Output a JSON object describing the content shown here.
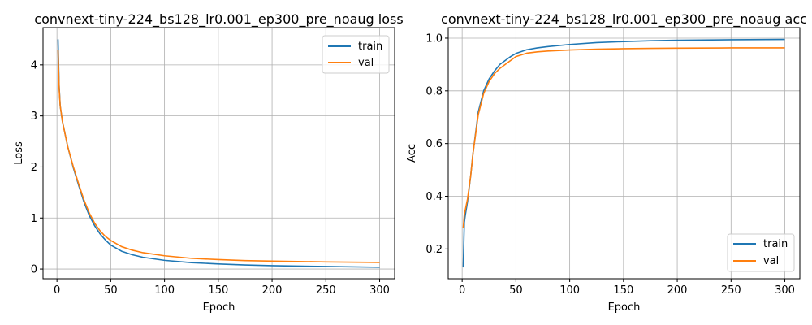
{
  "colors": {
    "train": "#1f77b4",
    "val": "#ff7f0e",
    "grid": "#b0b0b0"
  },
  "chart_data": [
    {
      "type": "line",
      "title": "convnext-tiny-224_bs128_lr0.001_ep300_pre_noaug loss",
      "xlabel": "Epoch",
      "ylabel": "Loss",
      "xlim": [
        -12.95,
        313.95
      ],
      "ylim": [
        -0.19,
        4.73
      ],
      "xticks": [
        0,
        50,
        100,
        150,
        200,
        250,
        300
      ],
      "yticks": [
        0,
        1,
        2,
        3,
        4
      ],
      "grid": true,
      "legend_position": "top-right",
      "series": [
        {
          "name": "train",
          "x": [
            1,
            2,
            3,
            5,
            8,
            10,
            15,
            20,
            25,
            30,
            35,
            40,
            45,
            50,
            60,
            70,
            80,
            100,
            125,
            150,
            175,
            200,
            250,
            300
          ],
          "y": [
            4.5,
            3.6,
            3.2,
            2.9,
            2.6,
            2.4,
            2.0,
            1.65,
            1.32,
            1.05,
            0.85,
            0.69,
            0.57,
            0.47,
            0.35,
            0.28,
            0.23,
            0.17,
            0.125,
            0.1,
            0.08,
            0.065,
            0.05,
            0.035
          ]
        },
        {
          "name": "val",
          "x": [
            1,
            2,
            3,
            5,
            8,
            10,
            15,
            20,
            25,
            30,
            35,
            40,
            45,
            50,
            60,
            70,
            80,
            100,
            125,
            150,
            175,
            200,
            250,
            300
          ],
          "y": [
            4.3,
            3.55,
            3.2,
            2.9,
            2.6,
            2.4,
            2.02,
            1.68,
            1.36,
            1.1,
            0.9,
            0.75,
            0.64,
            0.56,
            0.44,
            0.37,
            0.32,
            0.26,
            0.21,
            0.185,
            0.165,
            0.155,
            0.14,
            0.13
          ]
        }
      ]
    },
    {
      "type": "line",
      "title": "convnext-tiny-224_bs128_lr0.001_ep300_pre_noaug acc",
      "xlabel": "Epoch",
      "ylabel": "Acc",
      "xlim": [
        -12.95,
        313.95
      ],
      "ylim": [
        0.087,
        1.04
      ],
      "xticks": [
        0,
        50,
        100,
        150,
        200,
        250,
        300
      ],
      "yticks": [
        0.2,
        0.4,
        0.6,
        0.8,
        1.0
      ],
      "grid": true,
      "legend_position": "bottom-right",
      "series": [
        {
          "name": "train",
          "x": [
            1,
            2,
            3,
            5,
            8,
            10,
            15,
            20,
            25,
            30,
            35,
            40,
            45,
            50,
            60,
            70,
            80,
            100,
            125,
            150,
            175,
            200,
            250,
            300
          ],
          "y": [
            0.13,
            0.3,
            0.33,
            0.38,
            0.48,
            0.56,
            0.72,
            0.8,
            0.845,
            0.875,
            0.9,
            0.915,
            0.93,
            0.942,
            0.956,
            0.963,
            0.968,
            0.976,
            0.983,
            0.987,
            0.99,
            0.992,
            0.994,
            0.995
          ]
        },
        {
          "name": "val",
          "x": [
            1,
            2,
            3,
            5,
            8,
            10,
            15,
            20,
            25,
            30,
            35,
            40,
            45,
            50,
            60,
            70,
            80,
            100,
            125,
            150,
            175,
            200,
            250,
            300
          ],
          "y": [
            0.28,
            0.33,
            0.35,
            0.39,
            0.48,
            0.56,
            0.71,
            0.79,
            0.835,
            0.865,
            0.885,
            0.9,
            0.915,
            0.93,
            0.943,
            0.948,
            0.951,
            0.955,
            0.958,
            0.96,
            0.961,
            0.962,
            0.963,
            0.963
          ]
        }
      ]
    }
  ]
}
